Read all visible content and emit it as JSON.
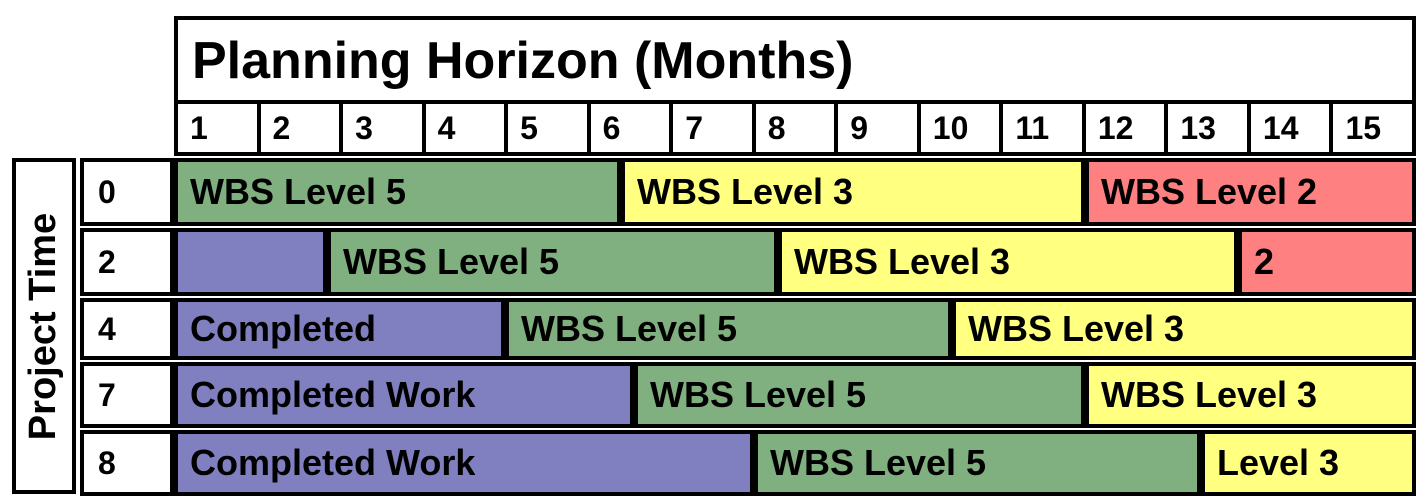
{
  "title": "Planning Horizon (Months)",
  "axis_label": "Project Time",
  "months": [
    "1",
    "2",
    "3",
    "4",
    "5",
    "6",
    "7",
    "8",
    "9",
    "10",
    "11",
    "12",
    "13",
    "14",
    "15"
  ],
  "colors": {
    "completed": "#8080c0",
    "level5": "#80b080",
    "level3": "#ffff80",
    "level2": "#ff8080"
  },
  "rows": [
    {
      "label": "0",
      "segments": [
        {
          "text": "WBS Level 5",
          "type": "level5",
          "start": 0,
          "end": 5.4
        },
        {
          "text": "WBS Level 3",
          "type": "level3",
          "start": 5.4,
          "end": 11
        },
        {
          "text": "WBS Level 2",
          "type": "level2",
          "start": 11,
          "end": 15
        }
      ]
    },
    {
      "label": "2",
      "segments": [
        {
          "text": "",
          "type": "completed",
          "start": 0,
          "end": 1.85
        },
        {
          "text": "WBS Level 5",
          "type": "level5",
          "start": 1.85,
          "end": 7.3
        },
        {
          "text": "WBS Level 3",
          "type": "level3",
          "start": 7.3,
          "end": 12.85
        },
        {
          "text": "2",
          "type": "level2",
          "start": 12.85,
          "end": 15
        }
      ]
    },
    {
      "label": "4",
      "segments": [
        {
          "text": "Completed",
          "type": "completed",
          "start": 0,
          "end": 4
        },
        {
          "text": "WBS Level 5",
          "type": "level5",
          "start": 4,
          "end": 9.4
        },
        {
          "text": "WBS Level 3",
          "type": "level3",
          "start": 9.4,
          "end": 15
        }
      ]
    },
    {
      "label": "7",
      "segments": [
        {
          "text": "Completed Work",
          "type": "completed",
          "start": 0,
          "end": 5.55
        },
        {
          "text": "WBS Level 5",
          "type": "level5",
          "start": 5.55,
          "end": 11
        },
        {
          "text": "WBS Level 3",
          "type": "level3",
          "start": 11,
          "end": 15
        }
      ]
    },
    {
      "label": "8",
      "segments": [
        {
          "text": "Completed Work",
          "type": "completed",
          "start": 0,
          "end": 7
        },
        {
          "text": "WBS Level 5",
          "type": "level5",
          "start": 7,
          "end": 12.4
        },
        {
          "text": "Level 3",
          "type": "level3",
          "start": 12.4,
          "end": 15
        }
      ]
    }
  ]
}
